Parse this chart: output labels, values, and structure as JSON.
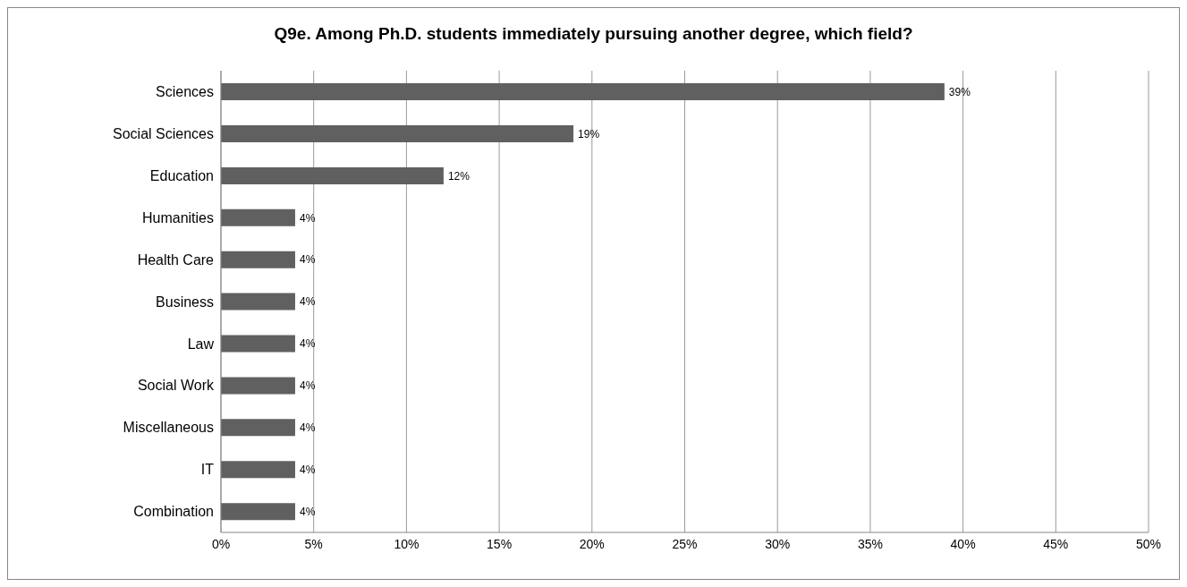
{
  "chart_data": {
    "type": "bar",
    "orientation": "horizontal",
    "title": "Q9e. Among Ph.D. students immediately pursuing another degree, which field?",
    "categories": [
      "Sciences",
      "Social Sciences",
      "Education",
      "Humanities",
      "Health Care",
      "Business",
      "Law",
      "Social Work",
      "Miscellaneous",
      "IT",
      "Combination"
    ],
    "values": [
      39,
      19,
      12,
      4,
      4,
      4,
      4,
      4,
      4,
      4,
      4
    ],
    "value_labels": [
      "39%",
      "19%",
      "12%",
      "4%",
      "4%",
      "4%",
      "4%",
      "4%",
      "4%",
      "4%",
      "4%"
    ],
    "color": "#606060",
    "xlim": [
      0,
      50
    ],
    "xticks": [
      {
        "value": 0,
        "label": "0%"
      },
      {
        "value": 5,
        "label": "5%"
      },
      {
        "value": 10,
        "label": "10%"
      },
      {
        "value": 15,
        "label": "15%"
      },
      {
        "value": 20,
        "label": "20%"
      },
      {
        "value": 25,
        "label": "25%"
      },
      {
        "value": 30,
        "label": "30%"
      },
      {
        "value": 35,
        "label": "35%"
      },
      {
        "value": 40,
        "label": "40%"
      },
      {
        "value": 45,
        "label": "45%"
      },
      {
        "value": 50,
        "label": "50%"
      }
    ],
    "grid": "x",
    "legend": false
  }
}
